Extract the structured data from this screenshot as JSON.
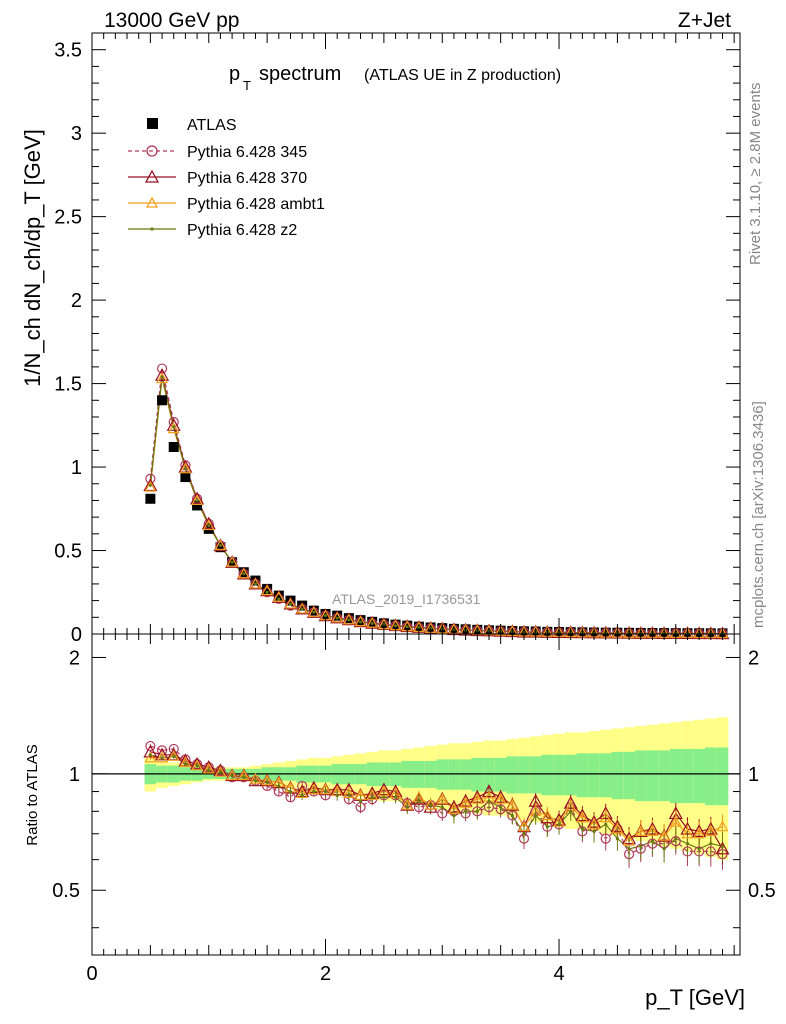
{
  "header": {
    "energy_label": "13000 GeV pp",
    "process_label": "Z+Jet",
    "plot_title": "p",
    "plot_title_sub": "T",
    "plot_title_main": "spectrum",
    "plot_title_suffix": "(ATLAS UE in Z production)"
  },
  "side": {
    "rivet_label": "Rivet 3.1.10, ≥ 2.8M events",
    "mcplots_label": "mcplots.cern.ch [arXiv:1306.3436]"
  },
  "watermark": "ATLAS_2019_I1736531",
  "legend": {
    "atlas": "ATLAS",
    "p345": "Pythia 6.428 345",
    "p370": "Pythia 6.428 370",
    "ambt1": "Pythia 6.428 ambt1",
    "z2": "Pythia 6.428 z2"
  },
  "colors": {
    "data": "#000000",
    "p345": "#b03a5a",
    "p370": "#9a1020",
    "ambt1": "#f0a020",
    "z2": "#6b7a10",
    "band_inner": "#88ee88",
    "band_outer": "#ffff88"
  },
  "axes": {
    "ylabel_main": "1/N_ch dN_ch/dp_T [GeV]",
    "ylabel_ratio": "Ratio to ATLAS",
    "xlabel": "p_T [GeV]",
    "y_ticks_main": [
      "0",
      "0.5",
      "1",
      "1.5",
      "2",
      "2.5",
      "3",
      "3.5"
    ],
    "y_ticks_ratio_left": [
      "0.5",
      "1",
      "2"
    ],
    "y_ticks_ratio_right": [
      "0.5",
      "1",
      "2"
    ],
    "x_ticks": [
      "0",
      "2",
      "4"
    ]
  },
  "chart_data": [
    {
      "type": "scatter",
      "panel": "main",
      "xlim": [
        0,
        5.55
      ],
      "ylim": [
        0,
        3.6
      ],
      "x": [
        0.5,
        0.6,
        0.7,
        0.8,
        0.9,
        1.0,
        1.1,
        1.2,
        1.3,
        1.4,
        1.5,
        1.6,
        1.7,
        1.8,
        1.9,
        2.0,
        2.1,
        2.2,
        2.3,
        2.4,
        2.5,
        2.6,
        2.7,
        2.8,
        2.9,
        3.0,
        3.1,
        3.2,
        3.3,
        3.4,
        3.5,
        3.6,
        3.7,
        3.8,
        3.9,
        4.0,
        4.1,
        4.2,
        4.3,
        4.4,
        4.5,
        4.6,
        4.7,
        4.8,
        4.9,
        5.0,
        5.1,
        5.2,
        5.3,
        5.4
      ],
      "series": [
        {
          "name": "ATLAS",
          "values": [
            0.81,
            1.4,
            1.12,
            0.94,
            0.77,
            0.63,
            0.52,
            0.43,
            0.37,
            0.32,
            0.27,
            0.23,
            0.2,
            0.17,
            0.14,
            0.12,
            0.11,
            0.095,
            0.083,
            0.073,
            0.064,
            0.056,
            0.05,
            0.044,
            0.039,
            0.035,
            0.031,
            0.028,
            0.025,
            0.022,
            0.02,
            0.018,
            0.016,
            0.015,
            0.013,
            0.012,
            0.011,
            0.01,
            0.009,
            0.008,
            0.0075,
            0.007,
            0.0065,
            0.006,
            0.0055,
            0.005,
            0.0047,
            0.0044,
            0.0041,
            0.0038
          ]
        },
        {
          "name": "Pythia 6.428 345",
          "values": [
            0.93,
            1.59,
            1.27,
            1.01,
            0.81,
            0.66,
            0.53,
            0.43,
            0.36,
            0.3,
            0.25,
            0.21,
            0.17,
            0.15,
            0.13,
            0.11,
            0.095,
            0.085,
            0.072,
            0.064,
            0.056,
            0.05,
            0.043,
            0.038,
            0.033,
            0.029,
            0.026,
            0.023,
            0.02,
            0.018,
            0.016,
            0.014,
            0.012,
            0.011,
            0.01,
            0.009,
            0.008,
            0.007,
            0.0065,
            0.006,
            0.005,
            0.0045,
            0.0042,
            0.0038,
            0.0035,
            0.0033,
            0.003,
            0.0028,
            0.0026,
            0.0024
          ]
        },
        {
          "name": "Pythia 6.428 370",
          "values": [
            0.89,
            1.55,
            1.25,
            1.0,
            0.81,
            0.66,
            0.53,
            0.43,
            0.36,
            0.3,
            0.26,
            0.22,
            0.18,
            0.15,
            0.13,
            0.11,
            0.097,
            0.086,
            0.074,
            0.065,
            0.058,
            0.051,
            0.045,
            0.04,
            0.034,
            0.031,
            0.027,
            0.024,
            0.021,
            0.019,
            0.017,
            0.015,
            0.012,
            0.012,
            0.01,
            0.0095,
            0.009,
            0.0078,
            0.007,
            0.0064,
            0.0055,
            0.0048,
            0.0046,
            0.0043,
            0.0038,
            0.0038,
            0.0034,
            0.0031,
            0.0029,
            0.0024
          ]
        },
        {
          "name": "Pythia 6.428 ambt1",
          "values": [
            0.88,
            1.53,
            1.23,
            0.99,
            0.8,
            0.65,
            0.53,
            0.43,
            0.36,
            0.3,
            0.26,
            0.22,
            0.18,
            0.15,
            0.13,
            0.11,
            0.097,
            0.085,
            0.074,
            0.065,
            0.057,
            0.05,
            0.044,
            0.039,
            0.034,
            0.03,
            0.027,
            0.024,
            0.021,
            0.019,
            0.017,
            0.015,
            0.012,
            0.012,
            0.01,
            0.0095,
            0.0088,
            0.0077,
            0.0068,
            0.0062,
            0.0054,
            0.0047,
            0.0045,
            0.0042,
            0.0038,
            0.0037,
            0.0034,
            0.0031,
            0.0029,
            0.0028
          ]
        },
        {
          "name": "Pythia 6.428 z2",
          "values": [
            0.89,
            1.54,
            1.24,
            0.99,
            0.8,
            0.65,
            0.53,
            0.43,
            0.36,
            0.3,
            0.25,
            0.21,
            0.18,
            0.15,
            0.13,
            0.11,
            0.095,
            0.084,
            0.072,
            0.063,
            0.056,
            0.049,
            0.043,
            0.038,
            0.033,
            0.029,
            0.026,
            0.022,
            0.02,
            0.018,
            0.016,
            0.014,
            0.011,
            0.011,
            0.01,
            0.009,
            0.0085,
            0.0075,
            0.0065,
            0.006,
            0.005,
            0.0044,
            0.0042,
            0.004,
            0.0035,
            0.0035,
            0.0031,
            0.003,
            0.0027,
            0.0025
          ]
        }
      ]
    },
    {
      "type": "line",
      "panel": "ratio",
      "xlim": [
        0,
        5.55
      ],
      "ylim": [
        0.34,
        2.3
      ],
      "x": [
        0.5,
        0.6,
        0.7,
        0.8,
        0.9,
        1.0,
        1.1,
        1.2,
        1.3,
        1.4,
        1.5,
        1.6,
        1.7,
        1.8,
        1.9,
        2.0,
        2.1,
        2.2,
        2.3,
        2.4,
        2.5,
        2.6,
        2.7,
        2.8,
        2.9,
        3.0,
        3.1,
        3.2,
        3.3,
        3.4,
        3.5,
        3.6,
        3.7,
        3.8,
        3.9,
        4.0,
        4.1,
        4.2,
        4.3,
        4.4,
        4.5,
        4.6,
        4.7,
        4.8,
        4.9,
        5.0,
        5.1,
        5.2,
        5.3,
        5.4
      ],
      "band_inner": [
        0.06,
        0.05,
        0.05,
        0.04,
        0.04,
        0.03,
        0.03,
        0.03,
        0.03,
        0.03,
        0.04,
        0.04,
        0.04,
        0.05,
        0.05,
        0.05,
        0.06,
        0.06,
        0.06,
        0.07,
        0.07,
        0.07,
        0.08,
        0.08,
        0.08,
        0.09,
        0.09,
        0.09,
        0.1,
        0.1,
        0.1,
        0.11,
        0.11,
        0.11,
        0.12,
        0.12,
        0.12,
        0.13,
        0.13,
        0.13,
        0.14,
        0.14,
        0.15,
        0.15,
        0.15,
        0.16,
        0.16,
        0.16,
        0.17,
        0.17
      ],
      "band_outer": [
        0.1,
        0.08,
        0.07,
        0.06,
        0.05,
        0.04,
        0.04,
        0.04,
        0.04,
        0.05,
        0.06,
        0.07,
        0.08,
        0.09,
        0.1,
        0.1,
        0.11,
        0.12,
        0.13,
        0.14,
        0.15,
        0.15,
        0.16,
        0.17,
        0.18,
        0.19,
        0.2,
        0.2,
        0.21,
        0.22,
        0.22,
        0.23,
        0.24,
        0.25,
        0.26,
        0.27,
        0.28,
        0.28,
        0.29,
        0.3,
        0.31,
        0.32,
        0.33,
        0.34,
        0.35,
        0.36,
        0.37,
        0.38,
        0.39,
        0.4
      ],
      "series": [
        {
          "name": "Pythia 6.428 345",
          "values": [
            1.18,
            1.15,
            1.16,
            1.09,
            1.06,
            1.04,
            1.02,
            0.98,
            0.98,
            0.96,
            0.93,
            0.9,
            0.87,
            0.93,
            0.9,
            0.88,
            0.9,
            0.86,
            0.82,
            0.86,
            0.88,
            0.88,
            0.84,
            0.82,
            0.83,
            0.79,
            0.8,
            0.79,
            0.8,
            0.82,
            0.81,
            0.78,
            0.68,
            0.8,
            0.73,
            0.74,
            0.82,
            0.71,
            0.73,
            0.68,
            0.72,
            0.62,
            0.64,
            0.66,
            0.66,
            0.67,
            0.63,
            0.63,
            0.63,
            0.62
          ]
        },
        {
          "name": "Pythia 6.428 370",
          "values": [
            1.14,
            1.12,
            1.12,
            1.08,
            1.06,
            1.04,
            1.02,
            0.99,
            0.99,
            0.96,
            0.96,
            0.95,
            0.92,
            0.9,
            0.92,
            0.91,
            0.91,
            0.91,
            0.88,
            0.89,
            0.91,
            0.9,
            0.83,
            0.86,
            0.82,
            0.86,
            0.82,
            0.85,
            0.87,
            0.9,
            0.87,
            0.83,
            0.73,
            0.85,
            0.77,
            0.76,
            0.84,
            0.78,
            0.75,
            0.79,
            0.73,
            0.68,
            0.71,
            0.72,
            0.69,
            0.79,
            0.72,
            0.71,
            0.72,
            0.64
          ]
        },
        {
          "name": "Pythia 6.428 ambt1",
          "values": [
            1.1,
            1.1,
            1.11,
            1.07,
            1.05,
            1.03,
            1.01,
            0.99,
            0.99,
            0.97,
            0.96,
            0.95,
            0.92,
            0.89,
            0.91,
            0.91,
            0.9,
            0.89,
            0.88,
            0.88,
            0.9,
            0.89,
            0.83,
            0.87,
            0.83,
            0.86,
            0.81,
            0.84,
            0.86,
            0.87,
            0.86,
            0.83,
            0.73,
            0.8,
            0.78,
            0.75,
            0.82,
            0.77,
            0.74,
            0.77,
            0.72,
            0.67,
            0.71,
            0.71,
            0.69,
            0.75,
            0.7,
            0.7,
            0.71,
            0.73
          ]
        },
        {
          "name": "Pythia 6.428 z2",
          "values": [
            1.12,
            1.1,
            1.11,
            1.06,
            1.05,
            1.02,
            1.01,
            0.99,
            0.98,
            0.96,
            0.95,
            0.93,
            0.9,
            0.88,
            0.9,
            0.9,
            0.88,
            0.88,
            0.85,
            0.87,
            0.87,
            0.87,
            0.82,
            0.85,
            0.83,
            0.82,
            0.78,
            0.8,
            0.8,
            0.85,
            0.82,
            0.78,
            0.7,
            0.78,
            0.73,
            0.74,
            0.8,
            0.72,
            0.71,
            0.74,
            0.68,
            0.64,
            0.65,
            0.67,
            0.64,
            0.68,
            0.66,
            0.64,
            0.66,
            0.65
          ]
        }
      ]
    }
  ]
}
